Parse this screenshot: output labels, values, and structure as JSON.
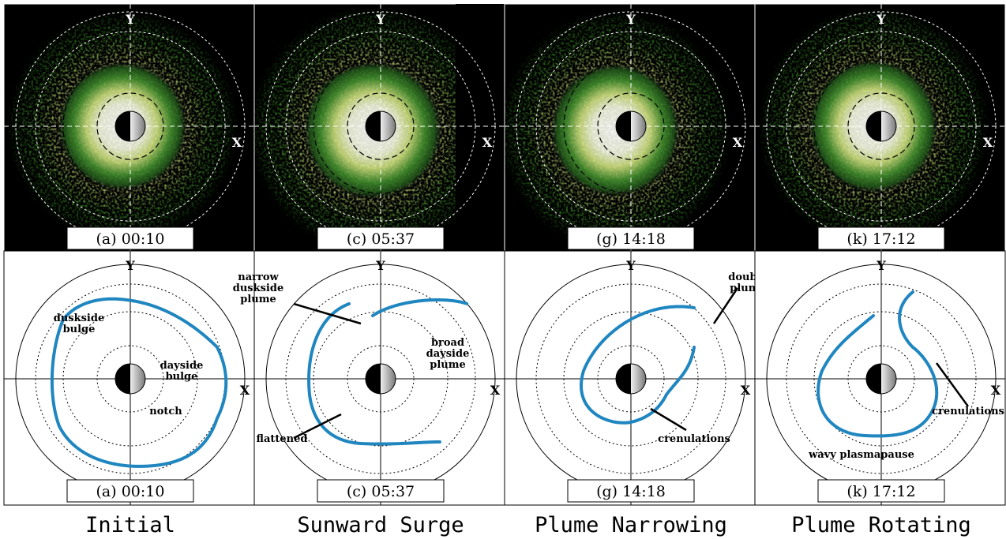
{
  "axis_labels": {
    "x": "X",
    "y": "Y"
  },
  "panels": [
    {
      "title": "Initial",
      "image_label": "(a) 00:10",
      "plot_label": "(a) 00:10",
      "annotations": [
        [
          "duskside",
          "bulge"
        ],
        [
          "dayside",
          "bulge"
        ],
        [
          "notch"
        ]
      ]
    },
    {
      "title": "Sunward Surge",
      "image_label": "(c) 05:37",
      "plot_label": "(c) 05:37",
      "annotations": [
        [
          "narrow",
          "duskside",
          "plume"
        ],
        [
          "broad",
          "dayside",
          "plume"
        ],
        [
          "flattened"
        ]
      ]
    },
    {
      "title": "Plume Narrowing",
      "image_label": "(g) 14:18",
      "plot_label": "(g) 14:18",
      "annotations": [
        [
          "double",
          "plume"
        ],
        [
          "crenulations"
        ]
      ]
    },
    {
      "title": "Plume Rotating",
      "image_label": "(k) 17:12",
      "plot_label": "(k) 17:12",
      "annotations": [
        [
          "crenulations"
        ],
        [
          "wavy plasmapause"
        ]
      ]
    }
  ]
}
